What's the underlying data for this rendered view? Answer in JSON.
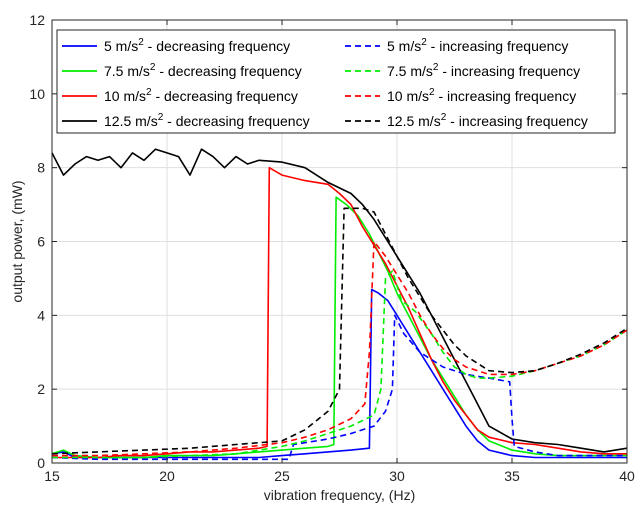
{
  "chart_data": {
    "type": "line",
    "xlabel": "vibration frequency, (Hz)",
    "ylabel": "output power, (mW)",
    "xlim": [
      15,
      40
    ],
    "ylim": [
      0,
      12
    ],
    "xticks": [
      15,
      20,
      25,
      30,
      35,
      40
    ],
    "yticks": [
      0,
      2,
      4,
      6,
      8,
      10,
      12
    ],
    "grid": true,
    "legend": {
      "placement": "top",
      "columns": 2
    },
    "series": [
      {
        "name": "5 m/s² - decreasing frequency",
        "label_main": "5 m/s",
        "label_sup": "2",
        "label_rest": " - decreasing frequency",
        "color": "#0000ff",
        "dash": "solid",
        "x": [
          15,
          15.5,
          16,
          17,
          18,
          19,
          20,
          21,
          22,
          23,
          24,
          25,
          26,
          27,
          28,
          28.8,
          28.9,
          29.2,
          29.6,
          30,
          30.5,
          31,
          31.5,
          32,
          32.5,
          33,
          33.5,
          34,
          35,
          36,
          37,
          38,
          39,
          40
        ],
        "y": [
          0.25,
          0.3,
          0.15,
          0.15,
          0.15,
          0.15,
          0.15,
          0.15,
          0.15,
          0.15,
          0.15,
          0.2,
          0.25,
          0.3,
          0.35,
          0.4,
          4.7,
          4.6,
          4.4,
          4.0,
          3.5,
          3.0,
          2.5,
          2.0,
          1.5,
          1.0,
          0.6,
          0.35,
          0.2,
          0.15,
          0.15,
          0.15,
          0.15,
          0.15
        ]
      },
      {
        "name": "7.5 m/s² - decreasing frequency",
        "label_main": "7.5 m/s",
        "label_sup": "2",
        "label_rest": " - decreasing frequency",
        "color": "#00ee00",
        "dash": "solid",
        "x": [
          15,
          15.5,
          16,
          17,
          18,
          19,
          20,
          21,
          22,
          23,
          24,
          25,
          26,
          27,
          27.25,
          27.35,
          27.8,
          28.3,
          28.8,
          29.2,
          29.6,
          30,
          30.5,
          31,
          31.5,
          32,
          32.5,
          33,
          33.5,
          34,
          35,
          36,
          37,
          38,
          39,
          40
        ],
        "y": [
          0.25,
          0.35,
          0.2,
          0.15,
          0.15,
          0.15,
          0.2,
          0.2,
          0.2,
          0.25,
          0.3,
          0.35,
          0.4,
          0.45,
          0.5,
          7.2,
          7.0,
          6.7,
          6.2,
          5.7,
          5.2,
          4.6,
          4.0,
          3.4,
          2.8,
          2.3,
          1.8,
          1.3,
          0.9,
          0.6,
          0.35,
          0.25,
          0.2,
          0.2,
          0.2,
          0.2
        ]
      },
      {
        "name": "10 m/s² - decreasing frequency",
        "label_main": "10 m/s",
        "label_sup": "2",
        "label_rest": " - decreasing frequency",
        "color": "#ff0000",
        "dash": "solid",
        "x": [
          15,
          16,
          17,
          18,
          19,
          20,
          21,
          22,
          23,
          24,
          24.35,
          24.45,
          25,
          26,
          27,
          27.5,
          28,
          28.5,
          29,
          29.5,
          30,
          30.5,
          31,
          31.5,
          32,
          32.5,
          33,
          33.5,
          34,
          35,
          36,
          37,
          38,
          39,
          40
        ],
        "y": [
          0.15,
          0.15,
          0.15,
          0.2,
          0.2,
          0.25,
          0.3,
          0.3,
          0.35,
          0.4,
          0.45,
          8.0,
          7.8,
          7.65,
          7.55,
          7.3,
          7.0,
          6.4,
          5.9,
          5.4,
          4.8,
          4.2,
          3.5,
          2.8,
          2.2,
          1.7,
          1.3,
          0.9,
          0.7,
          0.55,
          0.5,
          0.4,
          0.3,
          0.25,
          0.25
        ]
      },
      {
        "name": "12.5 m/s² - decreasing frequency",
        "label_main": "12.5 m/s",
        "label_sup": "2",
        "label_rest": " - decreasing frequency",
        "color": "#000000",
        "dash": "solid",
        "x": [
          15,
          15.5,
          16,
          16.5,
          17,
          17.5,
          18,
          18.5,
          19,
          19.5,
          20,
          20.5,
          21,
          21.5,
          22,
          22.5,
          23,
          23.5,
          24,
          25,
          26,
          27,
          28,
          28.5,
          29,
          29.5,
          30,
          30.5,
          31,
          31.5,
          32,
          32.5,
          33,
          33.5,
          34,
          35,
          36,
          37,
          38,
          39,
          40
        ],
        "y": [
          8.4,
          7.8,
          8.1,
          8.3,
          8.2,
          8.3,
          8.0,
          8.4,
          8.2,
          8.5,
          8.4,
          8.3,
          7.8,
          8.5,
          8.3,
          8.0,
          8.3,
          8.1,
          8.2,
          8.15,
          8.0,
          7.6,
          7.3,
          7.0,
          6.6,
          6.1,
          5.6,
          5.1,
          4.6,
          4.0,
          3.4,
          2.8,
          2.2,
          1.6,
          1.0,
          0.65,
          0.55,
          0.5,
          0.4,
          0.3,
          0.4
        ]
      },
      {
        "name": "5 m/s² - increasing frequency",
        "label_main": "5 m/s",
        "label_sup": "2",
        "label_rest": " - increasing frequency",
        "color": "#0000ff",
        "dash": "dashed",
        "x": [
          15,
          17,
          19,
          21,
          23,
          25,
          25.3,
          25.5,
          26,
          27,
          28,
          29,
          29.5,
          29.8,
          29.9,
          30.3,
          31,
          32,
          33,
          34,
          34.9,
          35,
          35.1,
          36,
          37,
          38,
          39,
          40
        ],
        "y": [
          0.15,
          0.1,
          0.1,
          0.1,
          0.1,
          0.1,
          0.1,
          0.5,
          0.55,
          0.65,
          0.8,
          1.0,
          1.4,
          2.0,
          4.0,
          3.5,
          3.0,
          2.6,
          2.4,
          2.3,
          2.2,
          1.2,
          0.45,
          0.3,
          0.2,
          0.2,
          0.2,
          0.2
        ]
      },
      {
        "name": "7.5 m/s² - increasing frequency",
        "label_main": "7.5 m/s",
        "label_sup": "2",
        "label_rest": " - increasing frequency",
        "color": "#00ee00",
        "dash": "dashed",
        "x": [
          15,
          17,
          19,
          21,
          23,
          25,
          26,
          27,
          28,
          29,
          29.3,
          29.5,
          29.8,
          30.2,
          30.8,
          31.5,
          32,
          32.5,
          33,
          33.5,
          34,
          35,
          36,
          37,
          38,
          39,
          40
        ],
        "y": [
          0.15,
          0.15,
          0.15,
          0.2,
          0.25,
          0.45,
          0.6,
          0.8,
          1.0,
          1.3,
          2.0,
          5.0,
          5.2,
          4.4,
          4.1,
          3.5,
          3.0,
          2.6,
          2.4,
          2.3,
          2.3,
          2.35,
          2.5,
          2.7,
          2.9,
          3.2,
          3.6
        ]
      },
      {
        "name": "10 m/s² - increasing frequency",
        "label_main": "10 m/s",
        "label_sup": "2",
        "label_rest": " - increasing frequency",
        "color": "#ff0000",
        "dash": "dashed",
        "x": [
          15,
          17,
          19,
          21,
          23,
          25,
          26,
          27,
          28,
          28.6,
          28.8,
          29,
          29.5,
          30,
          30.5,
          31,
          31.5,
          32,
          32.5,
          33,
          33.5,
          34,
          35,
          36,
          37,
          38,
          39,
          40
        ],
        "y": [
          0.2,
          0.2,
          0.25,
          0.3,
          0.4,
          0.55,
          0.7,
          0.9,
          1.2,
          1.6,
          3.0,
          6.0,
          5.6,
          5.1,
          4.6,
          4.0,
          3.5,
          3.1,
          2.8,
          2.6,
          2.5,
          2.4,
          2.4,
          2.5,
          2.7,
          2.9,
          3.2,
          3.6
        ]
      },
      {
        "name": "12.5 m/s² - increasing frequency",
        "label_main": "12.5 m/s",
        "label_sup": "2",
        "label_rest": " - increasing frequency",
        "color": "#000000",
        "dash": "dashed",
        "x": [
          15,
          17,
          19,
          21,
          23,
          25,
          26,
          27,
          27.5,
          27.7,
          28,
          28.5,
          29,
          29.5,
          30,
          30.5,
          31,
          31.5,
          32,
          32.5,
          33,
          33.5,
          34,
          35,
          36,
          37,
          38,
          39,
          40
        ],
        "y": [
          0.25,
          0.3,
          0.35,
          0.4,
          0.5,
          0.6,
          0.9,
          1.4,
          2.0,
          6.9,
          6.9,
          6.9,
          6.8,
          6.2,
          5.6,
          5.0,
          4.5,
          4.0,
          3.6,
          3.2,
          2.9,
          2.7,
          2.5,
          2.45,
          2.5,
          2.7,
          2.95,
          3.25,
          3.65
        ]
      }
    ]
  }
}
